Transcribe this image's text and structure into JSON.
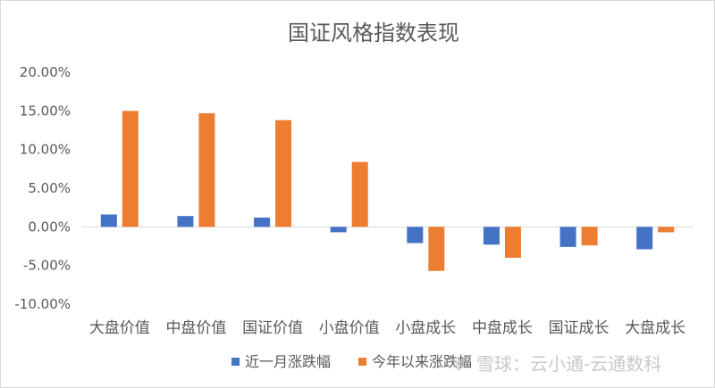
{
  "chart_data": {
    "type": "bar",
    "title": "国证风格指数表现",
    "categories": [
      "大盘价值",
      "中盘价值",
      "国证价值",
      "小盘价值",
      "小盘成长",
      "中盘成长",
      "国证成长",
      "大盘成长"
    ],
    "series": [
      {
        "name": "近一月涨跌幅",
        "color": "#4472C4",
        "values": [
          1.6,
          1.4,
          1.2,
          -0.7,
          -2.1,
          -2.3,
          -2.6,
          -2.9
        ]
      },
      {
        "name": "今年以来涨跌幅",
        "color": "#ED7D31",
        "values": [
          15.0,
          14.7,
          13.8,
          8.4,
          -5.7,
          -4.0,
          -2.4,
          -0.7
        ]
      }
    ],
    "y_ticks": [
      "20.00%",
      "15.00%",
      "10.00%",
      "5.00%",
      "0.00%",
      "-5.00%",
      "-10.00%"
    ],
    "ylim": [
      -10,
      20
    ],
    "xlabel": "",
    "ylabel": "",
    "grid": false,
    "legend_position": "bottom"
  },
  "watermark": "雪球：云小通-云通数科"
}
